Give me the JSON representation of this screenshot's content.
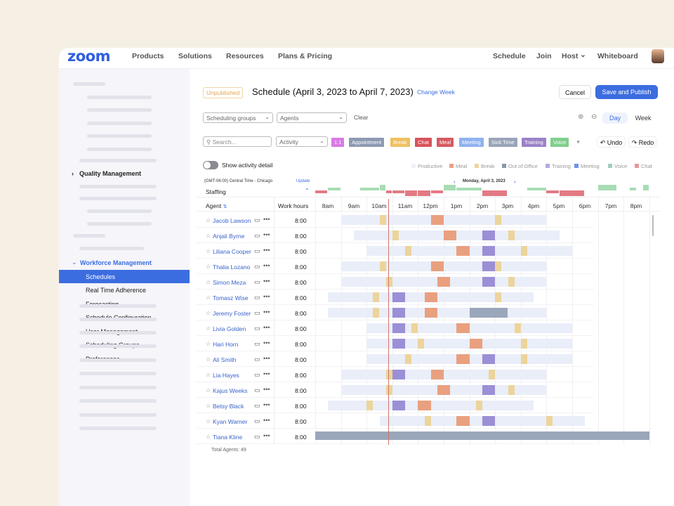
{
  "nav": {
    "logo": "zoom",
    "left": [
      "Products",
      "Solutions",
      "Resources",
      "Plans & Pricing"
    ],
    "right": [
      "Schedule",
      "Join",
      "Host",
      "Whiteboard"
    ],
    "host_chevron": "⌄"
  },
  "sidebar": {
    "quality": "Quality Management",
    "workforce": "Workforce Management",
    "items": [
      "Schedules",
      "Real Time Adherence",
      "Forecasting",
      "Schedule Configuration",
      "User Management",
      "Scheduling Groups",
      "Preferences"
    ],
    "selected": "Schedules"
  },
  "header": {
    "status": "Unpublished",
    "title": "Schedule (April 3, 2023 to April 7, 2023)",
    "change_week": "Change Week",
    "cancel": "Cancel",
    "save": "Save and Publish"
  },
  "filters": {
    "groups": "Scheduling groups",
    "agents": "Agents",
    "clear": "Clear",
    "day": "Day",
    "week": "Week",
    "view": "Day"
  },
  "toolbar": {
    "search_placeholder": "Search...",
    "activity": "Activity",
    "undo": "Undo",
    "redo": "Redo",
    "add": "+",
    "chips": [
      {
        "label": "1:1",
        "color": "#d87ae6"
      },
      {
        "label": "Appointment",
        "color": "#8e9ab2"
      },
      {
        "label": "Break",
        "color": "#efc060"
      },
      {
        "label": "Chat",
        "color": "#d9535b"
      },
      {
        "label": "Meal",
        "color": "#d65a62"
      },
      {
        "label": "Meeting",
        "color": "#8fb2f0"
      },
      {
        "label": "Sick Time",
        "color": "#99a5b8"
      },
      {
        "label": "Training",
        "color": "#9a82c8"
      },
      {
        "label": "Voice",
        "color": "#80cf8c"
      }
    ]
  },
  "activity_detail": {
    "label": "Show activity detail",
    "enabled": false
  },
  "legend": [
    {
      "label": "Productive",
      "color": "#eef1f8"
    },
    {
      "label": "Meal",
      "color": "#e9a084"
    },
    {
      "label": "Break",
      "color": "#ecd49b"
    },
    {
      "label": "Out of Office",
      "color": "#8d97ab"
    },
    {
      "label": "Training",
      "color": "#b3a9e0"
    },
    {
      "label": "Meeting",
      "color": "#6d93e6"
    },
    {
      "label": "Voice",
      "color": "#9fcdc0"
    },
    {
      "label": "Chat",
      "color": "#e4999c"
    }
  ],
  "colors": {
    "productive": "#e9eef9",
    "break": "#ecd49b",
    "meal": "#e9a07f",
    "training": "#9b8fd6",
    "out_of_office": "#9aa6ba",
    "now_line": "#d0766b",
    "over": "#a8dcb4",
    "under": "#e27a84"
  },
  "timeline": {
    "timezone": "(GMT-06:00) Central Time - Chicago",
    "update": "Update",
    "date": "Monday, April 3, 2023",
    "prev": "‹",
    "next": "›",
    "staffing": "Staffing",
    "agent_col": "Agent",
    "sort_icon": "⇅",
    "hours_col": "Work hours",
    "hours": [
      "8am",
      "9am",
      "10am",
      "11am",
      "12pm",
      "1pm",
      "2pm",
      "3pm",
      "4pm",
      "5pm",
      "6pm",
      "7pm",
      "8pm"
    ],
    "now_hour": 10.83,
    "staffing_levels": [
      [
        8,
        8.5,
        -1
      ],
      [
        8.5,
        9,
        1
      ],
      [
        9.75,
        10.5,
        1
      ],
      [
        10.5,
        10.75,
        2
      ],
      [
        10.75,
        11,
        -1
      ],
      [
        11,
        11.5,
        -1
      ],
      [
        11.5,
        12,
        -2
      ],
      [
        12,
        12.5,
        -2
      ],
      [
        12.5,
        13,
        -1
      ],
      [
        13,
        13.5,
        2
      ],
      [
        13.5,
        14.5,
        1
      ],
      [
        14.5,
        15.5,
        -2
      ],
      [
        16.25,
        17,
        1
      ],
      [
        17,
        17.5,
        -1
      ],
      [
        17.5,
        18.5,
        -2
      ],
      [
        19,
        19.75,
        2
      ],
      [
        20.25,
        20.5,
        1
      ],
      [
        20.75,
        21,
        2
      ]
    ],
    "total": "Total Agents: 49"
  },
  "agents": [
    {
      "name": "Jacob Lawson",
      "hours": "8:00",
      "blocks": [
        [
          "productive",
          9,
          17
        ],
        [
          "break",
          10.5,
          10.75
        ],
        [
          "meal",
          12.5,
          13
        ],
        [
          "break",
          15,
          15.25
        ]
      ]
    },
    {
      "name": "Anjali Byrne",
      "hours": "8:00",
      "blocks": [
        [
          "productive",
          9.5,
          17.5
        ],
        [
          "break",
          11,
          11.25
        ],
        [
          "meal",
          13,
          13.5
        ],
        [
          "training",
          14.5,
          15
        ],
        [
          "break",
          15.5,
          15.75
        ]
      ]
    },
    {
      "name": "Liliana Cooper",
      "hours": "8:00",
      "blocks": [
        [
          "productive",
          10,
          18
        ],
        [
          "break",
          11.5,
          11.75
        ],
        [
          "meal",
          13.5,
          14
        ],
        [
          "training",
          14.5,
          15
        ],
        [
          "break",
          16,
          16.25
        ]
      ]
    },
    {
      "name": "Thalia Lozano",
      "hours": "8:00",
      "blocks": [
        [
          "productive",
          9,
          17
        ],
        [
          "break",
          10.5,
          10.75
        ],
        [
          "meal",
          12.5,
          13
        ],
        [
          "training",
          14.5,
          15
        ],
        [
          "break",
          15,
          15.25
        ]
      ]
    },
    {
      "name": "Simon Meza",
      "hours": "8:00",
      "blocks": [
        [
          "productive",
          9,
          17
        ],
        [
          "break",
          10.75,
          11
        ],
        [
          "meal",
          12.75,
          13.25
        ],
        [
          "training",
          14.5,
          15
        ],
        [
          "break",
          15.5,
          15.75
        ]
      ]
    },
    {
      "name": "Tomasz Wise",
      "hours": "8:00",
      "blocks": [
        [
          "productive",
          8.5,
          16.5
        ],
        [
          "break",
          10.25,
          10.5
        ],
        [
          "training",
          11,
          11.5
        ],
        [
          "meal",
          12.25,
          12.75
        ],
        [
          "break",
          15,
          15.25
        ]
      ]
    },
    {
      "name": "Jeremy Foster",
      "hours": "8:00",
      "blocks": [
        [
          "productive",
          8.5,
          17
        ],
        [
          "break",
          10.25,
          10.5
        ],
        [
          "training",
          11,
          11.5
        ],
        [
          "meal",
          12.25,
          12.75
        ],
        [
          "out_of_office",
          14,
          15.5
        ]
      ]
    },
    {
      "name": "Livia Golden",
      "hours": "8:00",
      "blocks": [
        [
          "productive",
          10,
          18
        ],
        [
          "training",
          11,
          11.5
        ],
        [
          "break",
          11.75,
          12
        ],
        [
          "meal",
          13.5,
          14
        ],
        [
          "break",
          15.75,
          16
        ]
      ]
    },
    {
      "name": "Hari Horn",
      "hours": "8:00",
      "blocks": [
        [
          "productive",
          10,
          18
        ],
        [
          "training",
          11,
          11.5
        ],
        [
          "break",
          12,
          12.25
        ],
        [
          "meal",
          14,
          14.5
        ],
        [
          "break",
          16,
          16.25
        ]
      ]
    },
    {
      "name": "Ali Smith",
      "hours": "8:00",
      "blocks": [
        [
          "productive",
          10,
          18
        ],
        [
          "break",
          11.5,
          11.75
        ],
        [
          "meal",
          13.5,
          14
        ],
        [
          "training",
          14.5,
          15
        ],
        [
          "break",
          16,
          16.25
        ]
      ]
    },
    {
      "name": "Lia Hayes",
      "hours": "8:00",
      "blocks": [
        [
          "productive",
          9,
          17
        ],
        [
          "break",
          10.75,
          11
        ],
        [
          "training",
          11,
          11.5
        ],
        [
          "meal",
          12.5,
          13
        ],
        [
          "break",
          14.75,
          15
        ]
      ]
    },
    {
      "name": "Kajus Weeks",
      "hours": "8:00",
      "blocks": [
        [
          "productive",
          9,
          17
        ],
        [
          "break",
          10.75,
          11
        ],
        [
          "meal",
          12.75,
          13.25
        ],
        [
          "training",
          14.5,
          15
        ],
        [
          "break",
          15.5,
          15.75
        ]
      ]
    },
    {
      "name": "Betsy Black",
      "hours": "8:00",
      "blocks": [
        [
          "productive",
          8.5,
          16.5
        ],
        [
          "break",
          10,
          10.25
        ],
        [
          "training",
          11,
          11.5
        ],
        [
          "meal",
          12,
          12.5
        ],
        [
          "break",
          14.25,
          14.5
        ]
      ]
    },
    {
      "name": "Kyan Warner",
      "hours": "8:00",
      "blocks": [
        [
          "productive",
          10.5,
          18.5
        ],
        [
          "break",
          12.25,
          12.5
        ],
        [
          "meal",
          13.5,
          14
        ],
        [
          "training",
          14.5,
          15
        ],
        [
          "break",
          17,
          17.25
        ]
      ]
    },
    {
      "name": "Tiana Kline",
      "hours": "8:00",
      "blocks": [
        [
          "out_of_office",
          8,
          21
        ]
      ]
    }
  ]
}
